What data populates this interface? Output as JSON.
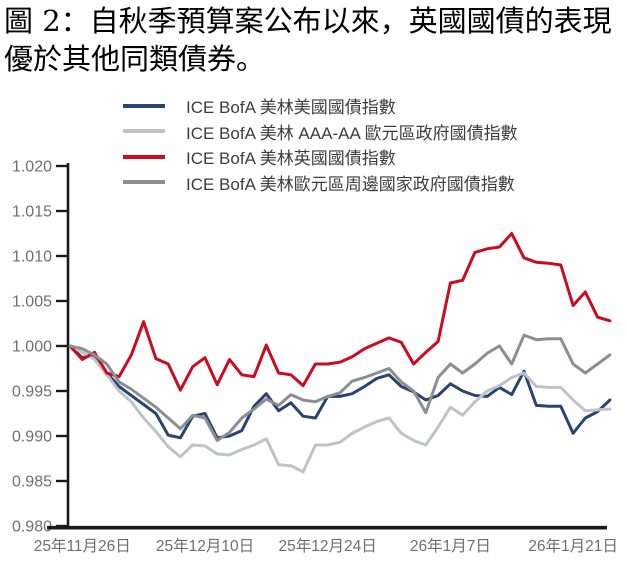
{
  "title": {
    "line1": "圖 2：自秋季預算案公布以來，英國國債的表現",
    "line2": "優於其他同類債券。"
  },
  "legend": {
    "items": [
      {
        "label": "ICE BofA 美林美國國債指數",
        "color": "#2a4372"
      },
      {
        "label": "ICE BofA 美林 AAA-AA 歐元區政府國債指數",
        "color": "#bfc3c8"
      },
      {
        "label": "ICE BofA 美林英國國債指數",
        "color": "#cd0a1e"
      },
      {
        "label": "ICE BofA 美林歐元區周邊國家政府國債指數",
        "color": "#8b8f94"
      }
    ]
  },
  "chart_data": {
    "type": "line",
    "title": "圖 2：自秋季預算案公布以來，英國國債的表現優於其他同類債券。",
    "xlabel": "",
    "ylabel": "",
    "ylim": [
      0.98,
      1.02
    ],
    "grid": false,
    "legend_position": "top",
    "y_tick_labels": [
      "1.020",
      "1.015",
      "1.010",
      "1.005",
      "1.000",
      "0.995",
      "0.990",
      "0.985",
      "0.980"
    ],
    "x_tick_labels": [
      "25年11月26日",
      "25年12月10日",
      "25年12月24日",
      "26年1月7日",
      "26年1月21日"
    ],
    "x_tick_indices": [
      1,
      11,
      21,
      31,
      41
    ],
    "n_points": 45,
    "axis_color": "#1a1a1a",
    "tick_label_color": "#6f6f6f",
    "series": [
      {
        "id": "us-treasury",
        "name": "ICE BofA 美林美國國債指數",
        "color": "#2a4372",
        "values": [
          1.0,
          0.9987,
          0.999,
          0.997,
          0.9955,
          0.9945,
          0.9935,
          0.9925,
          0.9901,
          0.9898,
          0.9922,
          0.9925,
          0.9898,
          0.99,
          0.9906,
          0.9933,
          0.9947,
          0.9928,
          0.9937,
          0.9922,
          0.992,
          0.9944,
          0.9944,
          0.9947,
          0.9955,
          0.9964,
          0.9968,
          0.9955,
          0.9949,
          0.994,
          0.9945,
          0.9958,
          0.995,
          0.9945,
          0.9944,
          0.9954,
          0.9946,
          0.9972,
          0.9934,
          0.9933,
          0.9933,
          0.9903,
          0.992,
          0.9927,
          0.994
        ]
      },
      {
        "id": "aaa-aa-euro-govt",
        "name": "ICE BofA 美林 AAA-AA 歐元區政府國債指數",
        "color": "#bfc3c8",
        "values": [
          1.0,
          0.9993,
          0.9985,
          0.9968,
          0.995,
          0.9938,
          0.992,
          0.9905,
          0.9888,
          0.9877,
          0.989,
          0.9889,
          0.988,
          0.9879,
          0.9885,
          0.989,
          0.9897,
          0.9868,
          0.9867,
          0.986,
          0.989,
          0.989,
          0.9893,
          0.9903,
          0.991,
          0.9916,
          0.992,
          0.9903,
          0.9895,
          0.989,
          0.991,
          0.9932,
          0.9923,
          0.9938,
          0.995,
          0.9956,
          0.9965,
          0.997,
          0.9955,
          0.9954,
          0.9954,
          0.994,
          0.9928,
          0.9929,
          0.993
        ]
      },
      {
        "id": "uk-gilt",
        "name": "ICE BofA 美林英國國債指數",
        "color": "#cd0a1e",
        "values": [
          1.0,
          0.9985,
          0.9993,
          0.997,
          0.9966,
          0.999,
          1.0027,
          0.9986,
          0.998,
          0.9951,
          0.9977,
          0.9987,
          0.9957,
          0.9985,
          0.9968,
          0.9966,
          1.0001,
          0.997,
          0.9968,
          0.9956,
          0.998,
          0.998,
          0.9982,
          0.9988,
          0.9997,
          1.0003,
          1.0009,
          1.0004,
          0.998,
          0.9993,
          1.0005,
          1.007,
          1.0073,
          1.0104,
          1.0108,
          1.011,
          1.0125,
          1.0098,
          1.0093,
          1.0092,
          1.009,
          1.0045,
          1.006,
          1.0032,
          1.0028
        ]
      },
      {
        "id": "euro-periphery-govt",
        "name": "ICE BofA 美林歐元區周邊國家政府國債指數",
        "color": "#8b8f94",
        "values": [
          1.0,
          0.9997,
          0.999,
          0.998,
          0.996,
          0.9952,
          0.9942,
          0.9932,
          0.992,
          0.9908,
          0.9923,
          0.992,
          0.9895,
          0.9904,
          0.992,
          0.993,
          0.9941,
          0.9934,
          0.9946,
          0.994,
          0.9938,
          0.9944,
          0.9948,
          0.9961,
          0.9965,
          0.997,
          0.9975,
          0.996,
          0.995,
          0.9926,
          0.9965,
          0.998,
          0.997,
          0.998,
          0.9992,
          1.0,
          0.998,
          1.0012,
          1.0007,
          1.0008,
          1.0008,
          0.998,
          0.997,
          0.998,
          0.999
        ]
      }
    ]
  }
}
